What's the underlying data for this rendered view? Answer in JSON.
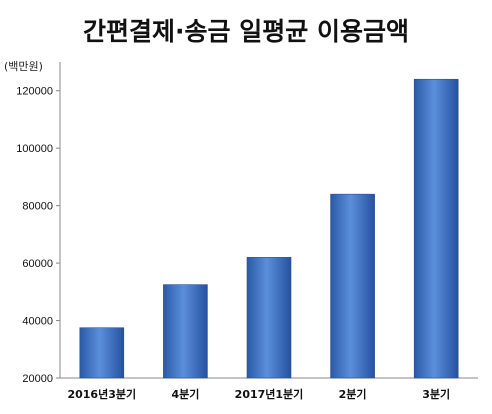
{
  "chart_data": {
    "type": "bar",
    "title": "간편결제·송금 일평균 이용금액",
    "unit_label": "(백만원)",
    "categories": [
      "2016년3분기",
      "4분기",
      "2017년1분기",
      "2분기",
      "3분기"
    ],
    "values": [
      37500,
      52500,
      62000,
      84000,
      124000
    ],
    "ylim": [
      20000,
      130000
    ],
    "yticks": [
      20000,
      40000,
      60000,
      80000,
      100000,
      120000
    ],
    "grid": false,
    "legend": "none",
    "bar_color": "#3a6fc0"
  }
}
